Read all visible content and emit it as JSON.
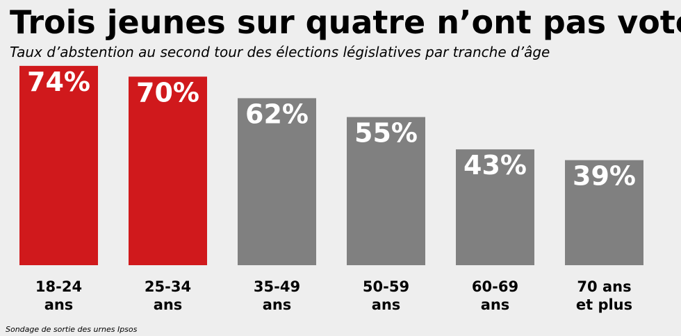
{
  "title": "Trois jeunes sur quatre n’ont pas voté",
  "subtitle": "Taux d’abstention au second tour des élections législatives par tranche d’âge",
  "source": "Sondage de sortie des urnes Ipsos",
  "colors": {
    "highlight": "#d0191c",
    "neutral": "#808080",
    "background": "#eeeeee"
  },
  "chart_data": {
    "type": "bar",
    "title": "Trois jeunes sur quatre n’ont pas voté",
    "subtitle": "Taux d’abstention au second tour des élections législatives par tranche d’âge",
    "xlabel": "",
    "ylabel": "",
    "ylim": [
      0,
      100
    ],
    "grid": false,
    "categories": [
      [
        "18-24",
        "ans"
      ],
      [
        "25-34",
        "ans"
      ],
      [
        "35-49",
        "ans"
      ],
      [
        "50-59",
        "ans"
      ],
      [
        "60-69",
        "ans"
      ],
      [
        "70 ans",
        "et plus"
      ]
    ],
    "values": [
      74,
      70,
      62,
      55,
      43,
      39
    ],
    "labels": [
      "74%",
      "70%",
      "62%",
      "55%",
      "43%",
      "39%"
    ],
    "highlighted": [
      true,
      true,
      false,
      false,
      false,
      false
    ]
  }
}
